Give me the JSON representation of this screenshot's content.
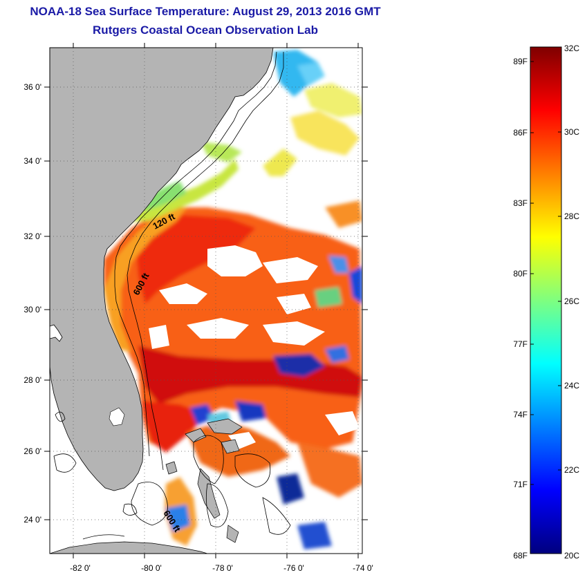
{
  "title": {
    "line1": "NOAA-18 Sea Surface Temperature:  August 29, 2013 2016 GMT",
    "line2": "Rutgers Coastal Ocean Observation Lab"
  },
  "map": {
    "lat_labels": [
      "36 0'",
      "34 0'",
      "32 0'",
      "30 0'",
      "28 0'",
      "26 0'",
      "24 0'"
    ],
    "lon_labels": [
      "-82 0'",
      "-80 0'",
      "-78 0'",
      "-76 0'",
      "-74 0'"
    ],
    "contour_labels": [
      "120 ft",
      "600 ft",
      "600 ft"
    ],
    "colors": {
      "land": "#b4b4b4",
      "ocean_no_data": "#ffffff"
    }
  },
  "colorbar": {
    "fahrenheit_labels": [
      "89F",
      "86F",
      "83F",
      "80F",
      "77F",
      "74F",
      "71F",
      "68F"
    ],
    "celsius_labels": [
      "32C",
      "30C",
      "28C",
      "26C",
      "24C",
      "22C",
      "20C"
    ],
    "colors": [
      "#00007f",
      "#0000ff",
      "#007fff",
      "#00ffff",
      "#7fff7f",
      "#ffff00",
      "#ff7f00",
      "#ff0000",
      "#7f0000"
    ]
  }
}
